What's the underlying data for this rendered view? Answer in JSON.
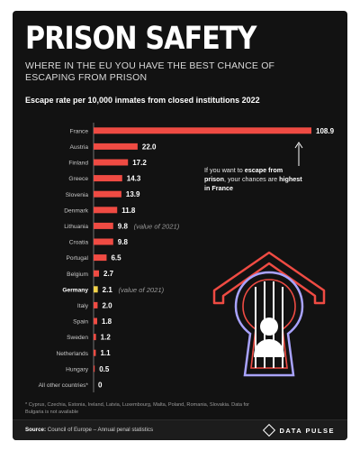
{
  "header": {
    "title": "PRISON SAFETY",
    "subtitle": "WHERE IN THE EU YOU HAVE THE BEST CHANCE OF ESCAPING FROM PRISON"
  },
  "chart_data": {
    "type": "bar",
    "orientation": "horizontal",
    "title": "Escape rate per 10,000 inmates from closed institutions 2022",
    "categories": [
      "France",
      "Austria",
      "Finland",
      "Greece",
      "Slovenia",
      "Denmark",
      "Lithuania",
      "Croatia",
      "Portugal",
      "Belgium",
      "Germany",
      "Italy",
      "Spain",
      "Sweden",
      "Netherlands",
      "Hungary",
      "All other countries*"
    ],
    "values": [
      108.9,
      22.0,
      17.2,
      14.3,
      13.9,
      11.8,
      9.8,
      9.8,
      6.5,
      2.7,
      2.1,
      2.0,
      1.8,
      1.2,
      1.1,
      0.5,
      0
    ],
    "value_labels": [
      "108.9",
      "22.0",
      "17.2",
      "14.3",
      "13.9",
      "11.8",
      "9.8",
      "9.8",
      "6.5",
      "2.7",
      "2.1",
      "2.0",
      "1.8",
      "1.2",
      "1.1",
      "0.5",
      "0"
    ],
    "value_notes": [
      "",
      "",
      "",
      "",
      "",
      "",
      "(value of 2021)",
      "",
      "",
      "",
      "(value of 2021)",
      "",
      "",
      "",
      "",
      "",
      ""
    ],
    "highlight": "Germany",
    "xlim": [
      0,
      108.9
    ],
    "colors": {
      "bar": "#ef4b43",
      "highlight": "#f3d34a",
      "axis": "#8a8a8a"
    }
  },
  "annotation": {
    "part1": "If you want to ",
    "bold1": "escape from prison",
    "part2": ", your chances are ",
    "bold2": "highest in France"
  },
  "footnote": "* Cyprus, Czechia, Estonia, Ireland, Latvia, Luxembourg, Malta, Poland, Romania, Slovakia. Data for Bulgaria is not available",
  "footer": {
    "source_label": "Source:",
    "source_text": " Council of Europe – Annual penal statistics",
    "brand": "DATA PULSE"
  },
  "illustration": {
    "icon": "prison-keyhole-icon",
    "colors": {
      "roof": "#ef4b43",
      "frame": "#a9a3ff",
      "bars": "#ffffff"
    }
  }
}
